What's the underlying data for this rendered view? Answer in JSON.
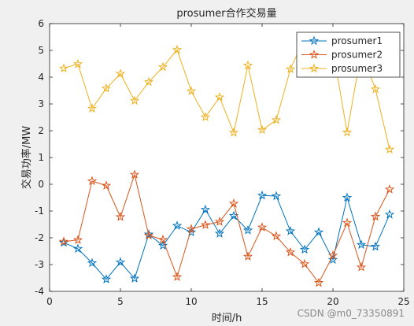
{
  "watermark": "CSDN @m0_73350891",
  "chart_data": {
    "type": "line",
    "title": "prosumer合作交易量",
    "xlabel": "时间/h",
    "ylabel": "交易功率/MW",
    "xlim": [
      0,
      25
    ],
    "ylim": [
      -4,
      6
    ],
    "xticks": [
      0,
      5,
      10,
      15,
      20,
      25
    ],
    "yticks": [
      -4,
      -3,
      -2,
      -1,
      0,
      1,
      2,
      3,
      4,
      5,
      6
    ],
    "grid": false,
    "legend_position": "top-right",
    "x": [
      1,
      2,
      3,
      4,
      5,
      6,
      7,
      8,
      9,
      10,
      11,
      12,
      13,
      14,
      15,
      16,
      17,
      18,
      19,
      20,
      21,
      22,
      23,
      24
    ],
    "series": [
      {
        "name": "prosumer1",
        "color": "#0072BD",
        "marker": "star",
        "values": [
          -2.18,
          -2.41,
          -2.94,
          -3.55,
          -2.91,
          -3.52,
          -1.87,
          -2.29,
          -1.55,
          -1.79,
          -0.95,
          -1.84,
          -1.18,
          -1.72,
          -0.42,
          -0.44,
          -1.75,
          -2.44,
          -1.79,
          -2.82,
          -0.5,
          -2.26,
          -2.33,
          -1.13
        ]
      },
      {
        "name": "prosumer2",
        "color": "#D95319",
        "marker": "star",
        "values": [
          -2.14,
          -2.08,
          0.12,
          -0.05,
          -1.22,
          0.36,
          -1.91,
          -2.07,
          -3.46,
          -1.67,
          -1.52,
          -1.4,
          -0.72,
          -2.7,
          -1.61,
          -1.94,
          -2.54,
          -2.98,
          -3.68,
          -2.66,
          -1.44,
          -3.1,
          -1.21,
          -0.19
        ]
      },
      {
        "name": "prosumer3",
        "color": "#EDB120",
        "marker": "star",
        "values": [
          4.33,
          4.49,
          2.83,
          3.58,
          4.13,
          3.12,
          3.82,
          4.38,
          5.02,
          3.48,
          2.51,
          3.25,
          1.93,
          4.44,
          2.03,
          2.4,
          4.3,
          5.48,
          5.1,
          5.04,
          1.94,
          4.96,
          3.55,
          1.3
        ]
      }
    ]
  }
}
